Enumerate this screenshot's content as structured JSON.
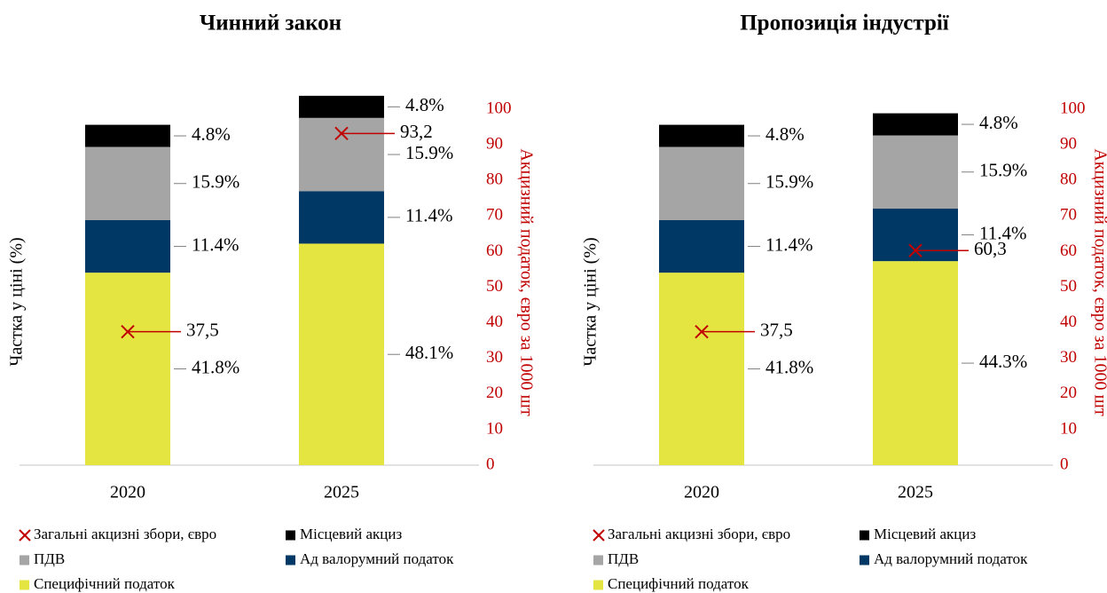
{
  "chart_data": [
    {
      "type": "bar",
      "stacked": true,
      "title": "Чинний закон",
      "ylabel": "Частка у ціні (%)",
      "y2label": "Акцизний податок, євро за 1000 шт",
      "categories": [
        "2020",
        "2025"
      ],
      "ylim": [
        0,
        85
      ],
      "y2lim": [
        0,
        110
      ],
      "y2ticks": [
        0,
        10,
        20,
        30,
        40,
        50,
        60,
        70,
        80,
        90,
        100
      ],
      "series": [
        {
          "name": "Специфічний податок",
          "color": "#e5e542",
          "values": [
            41.8,
            48.1
          ],
          "value_labels": [
            "41.8%",
            "48.1%"
          ]
        },
        {
          "name": "Ад валорумний податок",
          "color": "#003865",
          "values": [
            11.4,
            11.4
          ],
          "value_labels": [
            "11.4%",
            "11.4%"
          ]
        },
        {
          "name": "ПДВ",
          "color": "#a5a5a5",
          "values": [
            15.9,
            15.9
          ],
          "value_labels": [
            "15.9%",
            "15.9%"
          ]
        },
        {
          "name": "Місцевий акциз",
          "color": "#000000",
          "values": [
            4.8,
            4.8
          ],
          "value_labels": [
            "4.8%",
            "4.8%"
          ]
        },
        {
          "name": "Загальні акцизні збори, євро",
          "type": "scatter",
          "marker": "x",
          "axis": "y2",
          "color": "#c00000",
          "values": [
            37.5,
            93.2
          ],
          "value_labels": [
            "37,5",
            "93,2"
          ]
        }
      ]
    },
    {
      "type": "bar",
      "stacked": true,
      "title": "Пропозиція індустрії",
      "ylabel": "Частка у ціні (%)",
      "y2label": "Акцизний податок, євро за 1000 шт",
      "categories": [
        "2020",
        "2025"
      ],
      "ylim": [
        0,
        85
      ],
      "y2lim": [
        0,
        110
      ],
      "y2ticks": [
        0,
        10,
        20,
        30,
        40,
        50,
        60,
        70,
        80,
        90,
        100
      ],
      "series": [
        {
          "name": "Специфічний податок",
          "color": "#e5e542",
          "values": [
            41.8,
            44.3
          ],
          "value_labels": [
            "41.8%",
            "44.3%"
          ]
        },
        {
          "name": "Ад валорумний податок",
          "color": "#003865",
          "values": [
            11.4,
            11.4
          ],
          "value_labels": [
            "11.4%",
            "11.4%"
          ]
        },
        {
          "name": "ПДВ",
          "color": "#a5a5a5",
          "values": [
            15.9,
            15.9
          ],
          "value_labels": [
            "15.9%",
            "15.9%"
          ]
        },
        {
          "name": "Місцевий акциз",
          "color": "#000000",
          "values": [
            4.8,
            4.8
          ],
          "value_labels": [
            "4.8%",
            "4.8%"
          ]
        },
        {
          "name": "Загальні акцизні збори, євро",
          "type": "scatter",
          "marker": "x",
          "axis": "y2",
          "color": "#c00000",
          "values": [
            37.5,
            60.3
          ],
          "value_labels": [
            "37,5",
            "60,3"
          ]
        }
      ]
    }
  ]
}
